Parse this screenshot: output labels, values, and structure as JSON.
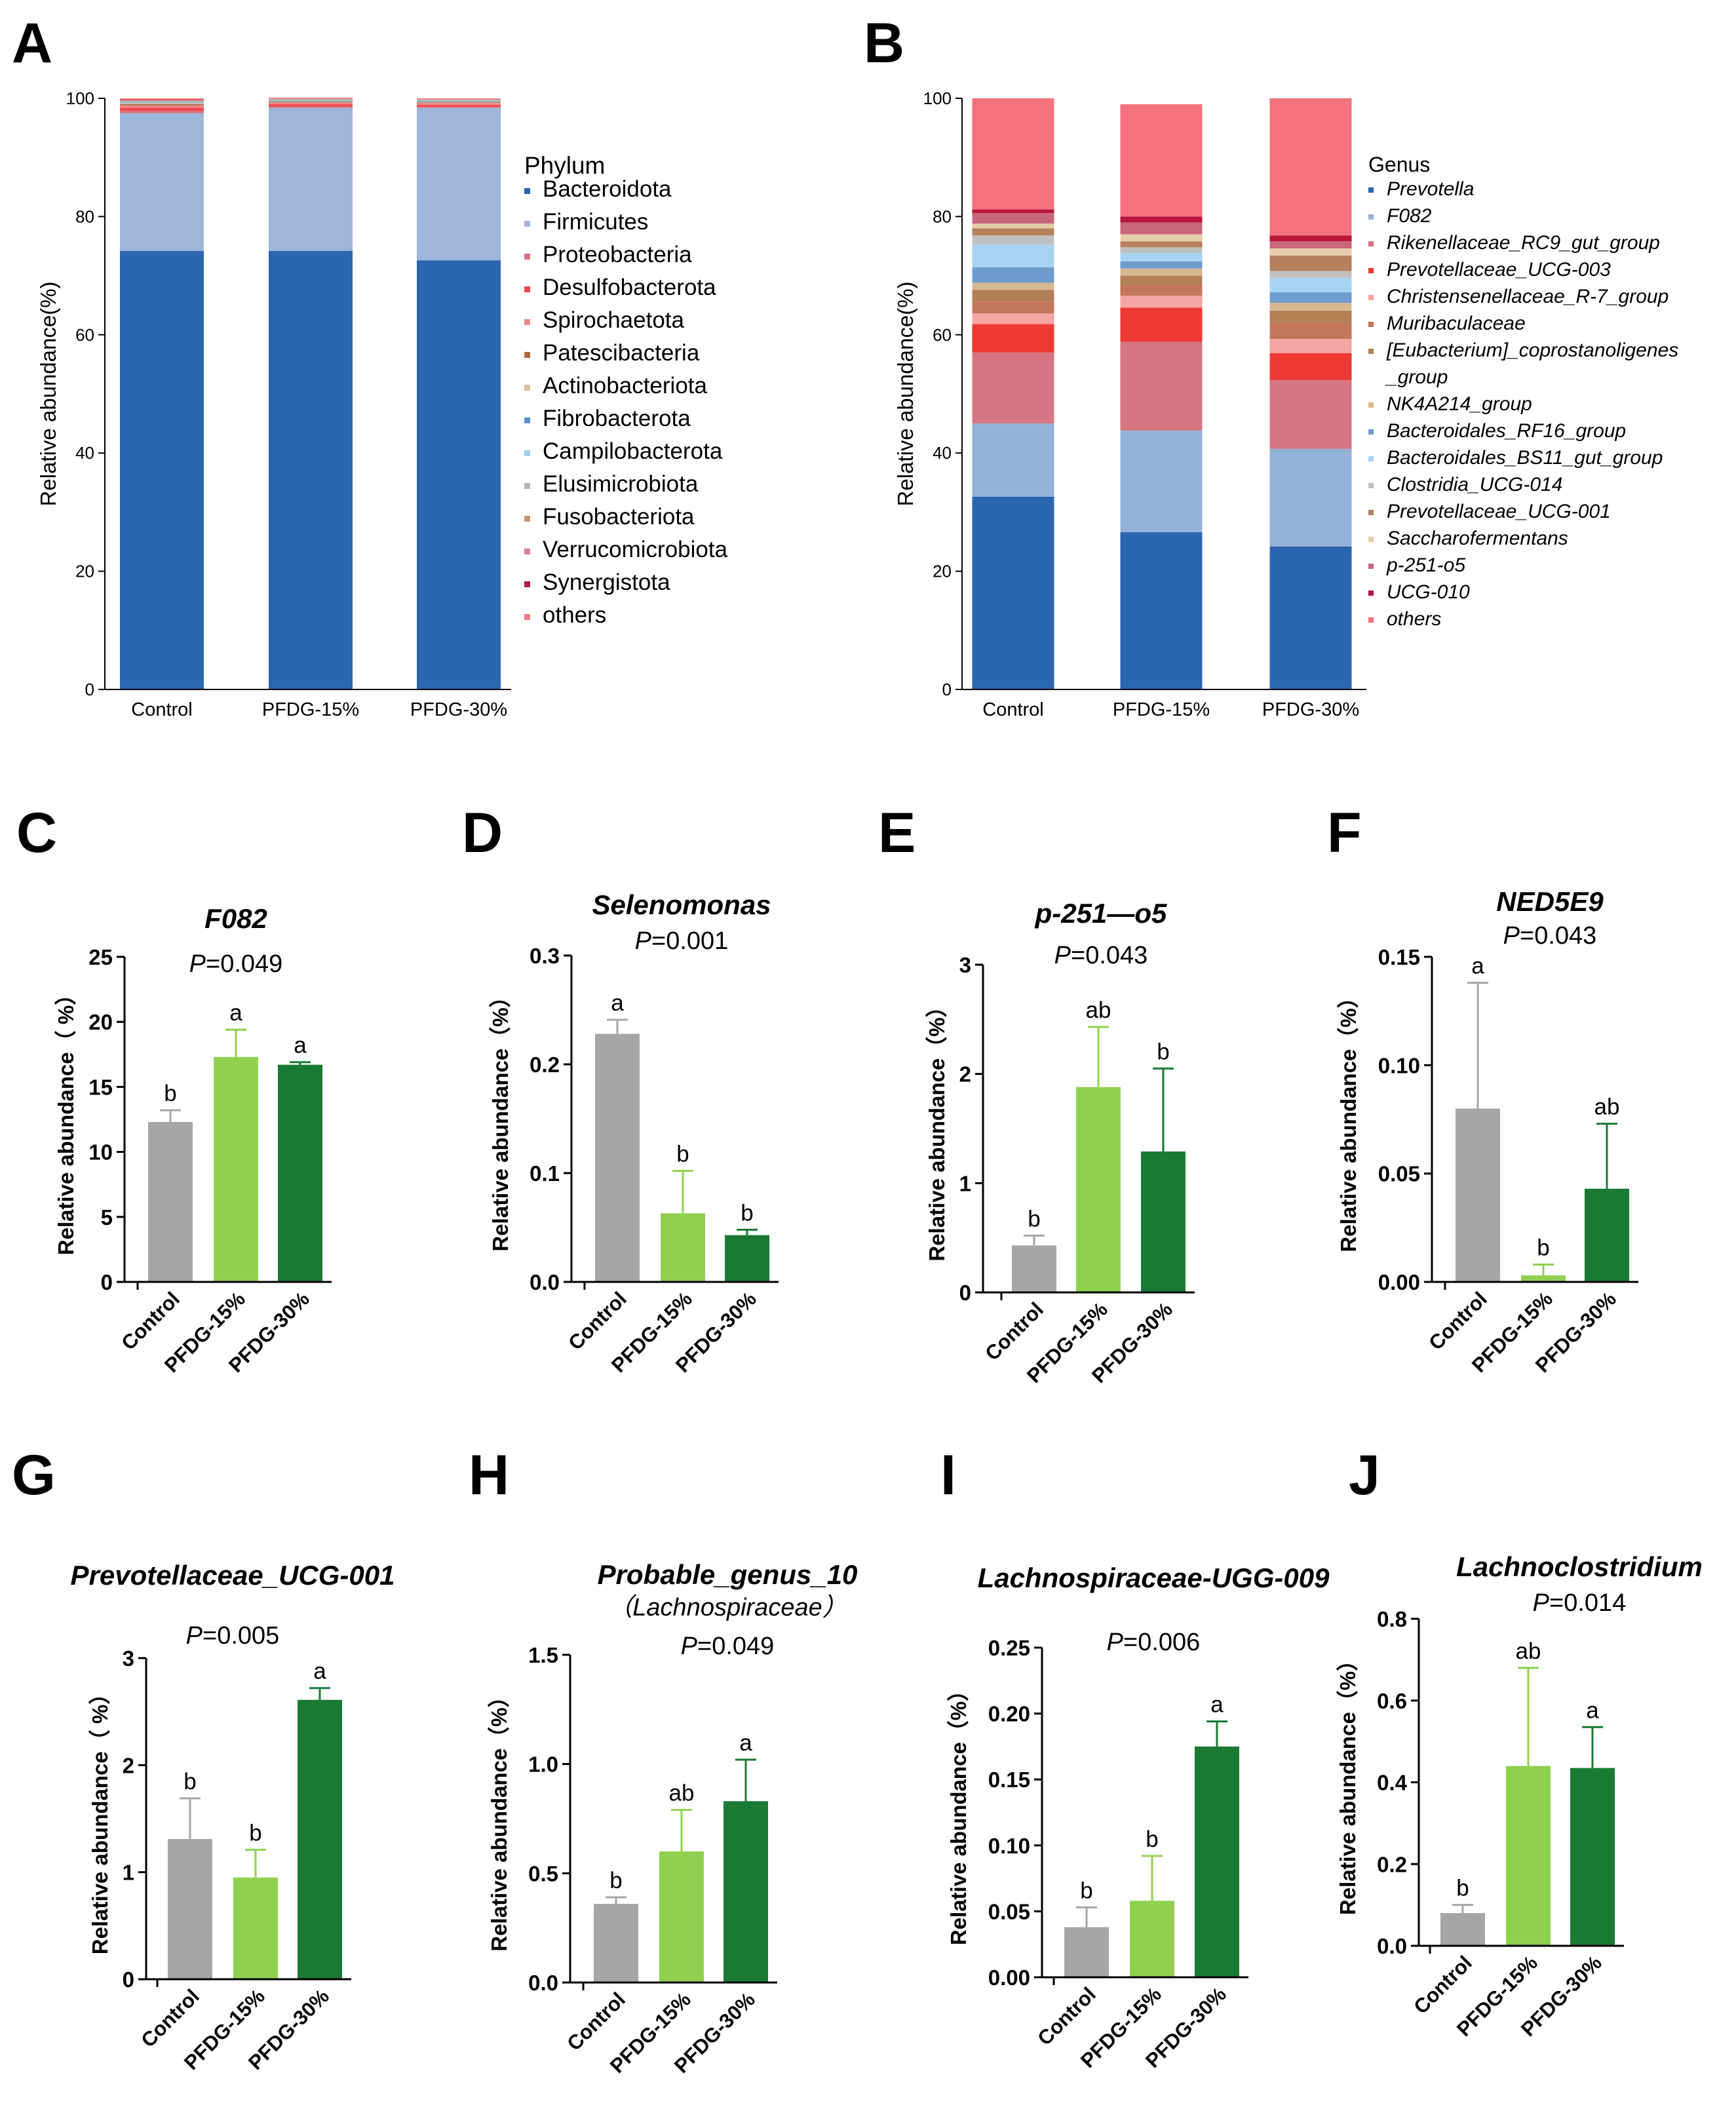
{
  "chart_data": [
    {
      "id": "A",
      "type": "stacked-bar",
      "panel_label": "A",
      "ylabel": "Relative abundance(%)",
      "ylim": [
        0,
        100
      ],
      "yticks": [
        0,
        20,
        40,
        60,
        80,
        100
      ],
      "categories": [
        "Control",
        "PFDG-15%",
        "PFDG-30%"
      ],
      "legend_title": "Phylum",
      "series": [
        {
          "name": "Bacteroidota",
          "color": "#2c65b0",
          "values": [
            74.2,
            74.2,
            72.6
          ]
        },
        {
          "name": "Firmicutes",
          "color": "#9db6d9",
          "values": [
            23.3,
            24.2,
            25.8
          ]
        },
        {
          "name": "Proteobacteria",
          "color": "#d9707d",
          "values": [
            0.4,
            0.2,
            0.2
          ]
        },
        {
          "name": "Desulfobacterota",
          "color": "#f0484a",
          "values": [
            0.5,
            0.4,
            0.3
          ]
        },
        {
          "name": "Spirochaetota",
          "color": "#ee8a8a",
          "values": [
            0.4,
            0.3,
            0.3
          ]
        },
        {
          "name": "Patescibacteria",
          "color": "#a8693e",
          "values": [
            0.2,
            0.1,
            0.1
          ]
        },
        {
          "name": "Actinobacteriota",
          "color": "#d8bf98",
          "values": [
            0.2,
            0.1,
            0.1
          ]
        },
        {
          "name": "Fibrobacterota",
          "color": "#5b8fcb",
          "values": [
            0.1,
            0.1,
            0.1
          ]
        },
        {
          "name": "Campilobacterota",
          "color": "#9ecff0",
          "values": [
            0.1,
            0.1,
            0.1
          ]
        },
        {
          "name": "Elusimicrobiota",
          "color": "#b4b4b4",
          "values": [
            0.1,
            0.1,
            0.1
          ]
        },
        {
          "name": "Fusobacteriota",
          "color": "#c89470",
          "values": [
            0.1,
            0.1,
            0.1
          ]
        },
        {
          "name": "Verrucomicrobiota",
          "color": "#d8808c",
          "values": [
            0.1,
            0.1,
            0.1
          ]
        },
        {
          "name": "Synergistota",
          "color": "#b01e44",
          "values": [
            0.1,
            0.0,
            0.0
          ]
        },
        {
          "name": "others",
          "color": "#f27a82",
          "values": [
            0.2,
            0.1,
            0.1
          ]
        }
      ]
    },
    {
      "id": "B",
      "type": "stacked-bar",
      "panel_label": "B",
      "ylabel": "Relative abundance(%)",
      "ylim": [
        0,
        100
      ],
      "yticks": [
        0,
        20,
        40,
        60,
        80,
        100
      ],
      "categories": [
        "Control",
        "PFDG-15%",
        "PFDG-30%"
      ],
      "legend_title": "Genus",
      "series": [
        {
          "name": "Prevotella",
          "color": "#2c65b0",
          "values": [
            32.6,
            26.6,
            24.2
          ]
        },
        {
          "name": "F082",
          "color": "#95b2d8",
          "values": [
            12.4,
            17.2,
            16.5
          ]
        },
        {
          "name": "Rikenellaceae_RC9_gut_group",
          "color": "#d57682",
          "values": [
            12.0,
            15.0,
            11.6
          ]
        },
        {
          "name": "Prevotellaceae_UCG-003",
          "color": "#ee3a35",
          "values": [
            4.8,
            5.8,
            4.6
          ]
        },
        {
          "name": "Christensenellaceae_R-7_group",
          "color": "#f6a5a5",
          "values": [
            1.8,
            2.0,
            2.4
          ]
        },
        {
          "name": "Muribaculaceae",
          "color": "#c4765a",
          "values": [
            2.0,
            1.8,
            2.8
          ]
        },
        {
          "name": "[Eubacterium]_coprostanoligenes_group",
          "color": "#b37f55",
          "values": [
            2.0,
            1.6,
            2.0
          ]
        },
        {
          "name": "NK4A214_group",
          "color": "#d8b890",
          "values": [
            1.2,
            1.2,
            1.3
          ]
        },
        {
          "name": "Bacteroidales_RF16_group",
          "color": "#6e9ccf",
          "values": [
            2.6,
            1.2,
            1.8
          ]
        },
        {
          "name": "Bacteroidales_BS11_gut_group",
          "color": "#a9d3f2",
          "values": [
            3.8,
            1.4,
            2.4
          ]
        },
        {
          "name": "Clostridia_UCG-014",
          "color": "#c0c0c0",
          "values": [
            1.6,
            1.0,
            1.2
          ]
        },
        {
          "name": "Prevotellaceae_UCG-001",
          "color": "#b5805c",
          "values": [
            1.2,
            1.0,
            2.6
          ]
        },
        {
          "name": "Saccharofermentans",
          "color": "#e4cdaa",
          "values": [
            0.8,
            1.2,
            1.2
          ]
        },
        {
          "name": "p-251-o5",
          "color": "#c8677a",
          "values": [
            1.8,
            2.0,
            1.2
          ]
        },
        {
          "name": "UCG-010",
          "color": "#b8163d",
          "values": [
            0.6,
            1.0,
            1.0
          ]
        },
        {
          "name": "others",
          "color": "#f2727d",
          "values": [
            18.8,
            19.0,
            23.2
          ]
        }
      ]
    },
    {
      "id": "C",
      "type": "bar",
      "panel_label": "C",
      "title": "F082",
      "p_italic": "P",
      "p_value": "=0.049",
      "ylabel": "Relative abundance（ %）",
      "ylim": [
        0,
        25
      ],
      "yticks": [
        "0",
        "5",
        "10",
        "15",
        "20",
        "25"
      ],
      "categories": [
        "Control",
        "PFDG-15%",
        "PFDG-30%"
      ],
      "values": [
        12.3,
        17.3,
        16.7
      ],
      "errors": [
        0.9,
        2.1,
        0.2
      ],
      "letters": [
        "b",
        "a",
        "a"
      ]
    },
    {
      "id": "D",
      "type": "bar",
      "panel_label": "D",
      "title": "Selenomonas",
      "p_italic": "P",
      "p_value": "=0.001",
      "ylabel": "Relative abundance（%）",
      "ylim": [
        0,
        0.3
      ],
      "yticks": [
        "0.0",
        "0.1",
        "0.2",
        "0.3"
      ],
      "categories": [
        "Control",
        "PFDG-15%",
        "PFDG-30%"
      ],
      "values": [
        0.228,
        0.063,
        0.043
      ],
      "errors": [
        0.013,
        0.039,
        0.005
      ],
      "letters": [
        "a",
        "b",
        "b"
      ]
    },
    {
      "id": "E",
      "type": "bar",
      "panel_label": "E",
      "title": "p-251—o5",
      "p_italic": "P",
      "p_value": "=0.043",
      "ylabel": "Relative abundance（%）",
      "ylim": [
        0,
        3
      ],
      "yticks": [
        "0",
        "1",
        "2",
        "3"
      ],
      "categories": [
        "Control",
        "PFDG-15%",
        "PFDG-30%"
      ],
      "values": [
        0.43,
        1.88,
        1.29
      ],
      "errors": [
        0.09,
        0.55,
        0.76
      ],
      "letters": [
        "b",
        "ab",
        "b"
      ]
    },
    {
      "id": "F",
      "type": "bar",
      "panel_label": "F",
      "title": "NED5E9",
      "p_italic": "P",
      "p_value": "=0.043",
      "ylabel": "Relative abundance（%）",
      "ylim": [
        0,
        0.15
      ],
      "yticks": [
        "0.00",
        "0.05",
        "0.10",
        "0.15"
      ],
      "categories": [
        "Control",
        "PFDG-15%",
        "PFDG-30%"
      ],
      "values": [
        0.08,
        0.003,
        0.043
      ],
      "errors": [
        0.058,
        0.005,
        0.03
      ],
      "letters": [
        "a",
        "b",
        "ab"
      ]
    },
    {
      "id": "G",
      "type": "bar",
      "panel_label": "G",
      "title": "Prevotellaceae_UCG-001",
      "p_italic": "P",
      "p_value": "=0.005",
      "ylabel": "Relative abundance（ %）",
      "ylim": [
        0,
        3
      ],
      "yticks": [
        "0",
        "1",
        "2",
        "3"
      ],
      "categories": [
        "Control",
        "PFDG-15%",
        "PFDG-30%"
      ],
      "values": [
        1.31,
        0.95,
        2.61
      ],
      "errors": [
        0.38,
        0.26,
        0.11
      ],
      "letters": [
        "b",
        "b",
        "a"
      ]
    },
    {
      "id": "H",
      "type": "bar",
      "panel_label": "H",
      "title": "Probable_genus_10",
      "subtitle": "（Lachnospiraceae）",
      "p_italic": "P",
      "p_value": "=0.049",
      "ylabel": "Relative abundance（%）",
      "ylim": [
        0,
        1.5
      ],
      "yticks": [
        "0.0",
        "0.5",
        "1.0",
        "1.5"
      ],
      "categories": [
        "Control",
        "PFDG-15%",
        "PFDG-30%"
      ],
      "values": [
        0.36,
        0.6,
        0.83
      ],
      "errors": [
        0.03,
        0.19,
        0.19
      ],
      "letters": [
        "b",
        "ab",
        "a"
      ]
    },
    {
      "id": "I",
      "type": "bar",
      "panel_label": "I",
      "title": "Lachnospiraceae-UGG-009",
      "p_italic": "P",
      "p_value": "=0.006",
      "ylabel": "Relative abundance（%）",
      "ylim": [
        0,
        0.25
      ],
      "yticks": [
        "0.00",
        "0.05",
        "0.10",
        "0.15",
        "0.20",
        "0.25"
      ],
      "categories": [
        "Control",
        "PFDG-15%",
        "PFDG-30%"
      ],
      "values": [
        0.038,
        0.058,
        0.175
      ],
      "errors": [
        0.015,
        0.034,
        0.019
      ],
      "letters": [
        "b",
        "b",
        "a"
      ]
    },
    {
      "id": "J",
      "type": "bar",
      "panel_label": "J",
      "title": "Lachnoclostridium",
      "p_italic": "P",
      "p_value": "=0.014",
      "ylabel": "Relative abundance（%）",
      "ylim": [
        0,
        0.8
      ],
      "yticks": [
        "0.0",
        "0.2",
        "0.4",
        "0.6",
        "0.8"
      ],
      "categories": [
        "Control",
        "PFDG-15%",
        "PFDG-30%"
      ],
      "values": [
        0.08,
        0.44,
        0.435
      ],
      "errors": [
        0.02,
        0.24,
        0.1
      ],
      "letters": [
        "b",
        "ab",
        "a"
      ]
    }
  ],
  "colors": {
    "control": "#a6a6a6",
    "pfdg15": "#8fd14f",
    "pfdg30": "#1a7a34",
    "axis": "#000000",
    "text": "#000000"
  }
}
